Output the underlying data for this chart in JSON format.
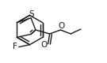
{
  "bg_color": "#ffffff",
  "bond_color": "#1a1a1a",
  "bond_width": 1.0,
  "font_size": 7.5,
  "figsize": [
    1.35,
    0.8
  ],
  "dpi": 100,
  "xlim": [
    0,
    135
  ],
  "ylim": [
    0,
    80
  ]
}
